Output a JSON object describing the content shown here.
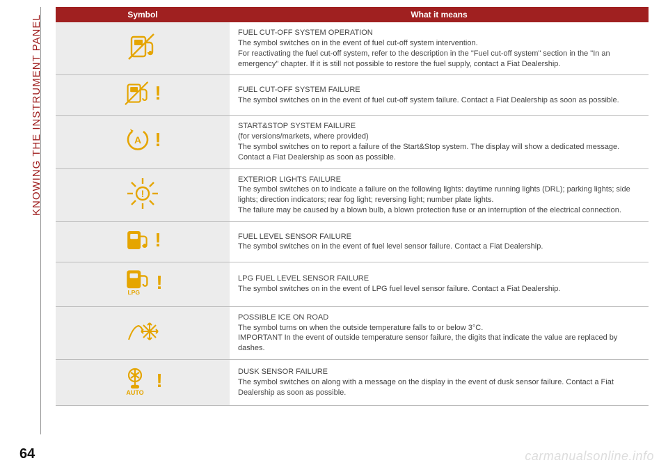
{
  "side_label": "KNOWING THE INSTRUMENT PANEL",
  "page_number": "64",
  "watermark": "carmanualsonline.info",
  "table": {
    "header_symbol": "Symbol",
    "header_meaning": "What it means",
    "rows": [
      {
        "icon": "fuel-cutoff",
        "title": "FUEL CUT-OFF SYSTEM OPERATION",
        "body": "The symbol switches on in the event of fuel cut-off system intervention.\nFor reactivating the fuel cut-off system, refer to the description in the \"Fuel cut-off system\" section in the \"In an emergency\" chapter. If it is still not possible to restore the fuel supply, contact a Fiat Dealership."
      },
      {
        "icon": "fuel-cutoff-exclaim",
        "title": "FUEL CUT-OFF SYSTEM FAILURE",
        "body": "The symbol switches on in the event of fuel cut-off system failure. Contact a Fiat Dealership as soon as possible."
      },
      {
        "icon": "start-stop-exclaim",
        "title": "START&STOP SYSTEM FAILURE",
        "body": "(for versions/markets, where provided)\nThe symbol switches on to report a failure of the Start&Stop system. The display will show a dedicated message. Contact a Fiat Dealership as soon as possible."
      },
      {
        "icon": "exterior-lights",
        "title": "EXTERIOR LIGHTS FAILURE",
        "body": "The symbol switches on to indicate a failure on the following lights: daytime running lights (DRL); parking lights; side lights; direction indicators; rear fog light; reversing light; number plate lights.\nThe failure may be caused by a blown bulb, a blown protection fuse or an interruption of the electrical connection."
      },
      {
        "icon": "fuel-exclaim",
        "title": "FUEL LEVEL SENSOR FAILURE",
        "body": "The symbol switches on in the event of fuel level sensor failure. Contact a Fiat Dealership."
      },
      {
        "icon": "lpg-exclaim",
        "title": "LPG FUEL LEVEL SENSOR FAILURE",
        "body": "The symbol switches on in the event of LPG fuel level sensor failure. Contact a Fiat Dealership."
      },
      {
        "icon": "ice",
        "title": "POSSIBLE ICE ON ROAD",
        "body": "The symbol turns on when the outside temperature falls to or below 3°C.\nIMPORTANT In the event of outside temperature sensor failure, the digits that indicate the value are replaced by dashes."
      },
      {
        "icon": "dusk-exclaim",
        "title": "DUSK SENSOR FAILURE",
        "body": "The symbol switches on along with a message on the display in the event of dusk sensor failure. Contact a Fiat Dealership as soon as possible."
      }
    ]
  },
  "colors": {
    "brand_red": "#a02020",
    "icon_amber": "#e5a500",
    "row_alt_bg": "#ececec",
    "text": "#444444",
    "border": "#bbbbbb",
    "watermark": "#dddddd"
  }
}
